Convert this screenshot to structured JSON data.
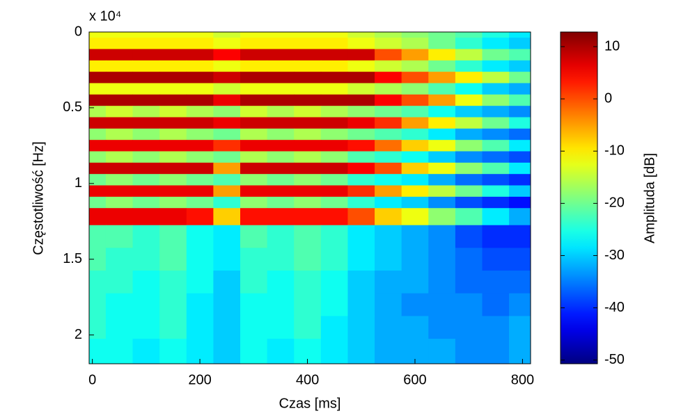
{
  "chart_data": {
    "type": "heatmap",
    "colormap": "jet",
    "xlabel": "Czas [ms]",
    "ylabel": "Częstotliwość [Hz]",
    "y_exponent_label": "x 10⁴",
    "colorbar_label": "Amplituda [dB]",
    "x": [
      0,
      50,
      100,
      150,
      200,
      250,
      300,
      350,
      400,
      450,
      500,
      550,
      600,
      650,
      700,
      750,
      800
    ],
    "y": [
      0,
      750,
      1500,
      2250,
      3000,
      3750,
      4500,
      5250,
      6000,
      6750,
      7500,
      8250,
      9000,
      9750,
      10500,
      11250,
      12000,
      13500,
      15000,
      16500,
      18000,
      19500,
      21000
    ],
    "xlim": [
      -6,
      815
    ],
    "ylim": [
      0,
      21900
    ],
    "xticks": [
      0,
      200,
      400,
      600,
      800
    ],
    "yticks": [
      {
        "value": 0,
        "label": "0"
      },
      {
        "value": 5000,
        "label": "0.5"
      },
      {
        "value": 10000,
        "label": "1"
      },
      {
        "value": 15000,
        "label": "1.5"
      },
      {
        "value": 20000,
        "label": "2"
      }
    ],
    "clim": [
      -50.7,
      12.8
    ],
    "cticks": [
      10,
      0,
      -10,
      -20,
      -30,
      -40,
      -50
    ],
    "values": [
      [
        -12,
        -12,
        -12,
        -12,
        -12,
        -14,
        -12,
        -12,
        -12,
        -12,
        -14,
        -16,
        -18,
        -20,
        -22,
        -25,
        -28
      ],
      [
        -10,
        -10,
        -10,
        -10,
        -10,
        -12,
        -10,
        -10,
        -10,
        -10,
        -12,
        -14,
        -16,
        -20,
        -24,
        -28,
        -30
      ],
      [
        8,
        8,
        8,
        8,
        8,
        5,
        8,
        8,
        8,
        8,
        8,
        0,
        -5,
        -10,
        -15,
        -20,
        -22
      ],
      [
        -10,
        -10,
        -10,
        -10,
        -10,
        -12,
        -10,
        -10,
        -10,
        -10,
        -12,
        -14,
        -16,
        -20,
        -24,
        -28,
        -30
      ],
      [
        10,
        10,
        10,
        10,
        10,
        8,
        10,
        10,
        10,
        10,
        10,
        5,
        0,
        -5,
        -10,
        -15,
        -20
      ],
      [
        -12,
        -12,
        -12,
        -12,
        -12,
        -14,
        -12,
        -12,
        -12,
        -12,
        -14,
        -16,
        -18,
        -22,
        -26,
        -30,
        -32
      ],
      [
        10,
        10,
        10,
        10,
        10,
        6,
        10,
        10,
        10,
        10,
        10,
        5,
        0,
        -5,
        -12,
        -18,
        -22
      ],
      [
        -16,
        -14,
        -16,
        -14,
        -16,
        -18,
        -14,
        -16,
        -14,
        -16,
        -18,
        -20,
        -22,
        -26,
        -30,
        -32,
        -34
      ],
      [
        8,
        8,
        8,
        8,
        8,
        6,
        8,
        8,
        8,
        8,
        6,
        2,
        -5,
        -10,
        -15,
        -20,
        -25
      ],
      [
        -18,
        -16,
        -18,
        -16,
        -18,
        -20,
        -16,
        -18,
        -16,
        -18,
        -20,
        -22,
        -24,
        -28,
        -32,
        -34,
        -36
      ],
      [
        6,
        6,
        6,
        6,
        6,
        2,
        6,
        6,
        6,
        6,
        4,
        -2,
        -8,
        -12,
        -18,
        -22,
        -28
      ],
      [
        -18,
        -16,
        -18,
        -16,
        -18,
        -20,
        -16,
        -18,
        -16,
        -18,
        -22,
        -24,
        -26,
        -30,
        -34,
        -36,
        -38
      ],
      [
        8,
        8,
        8,
        8,
        8,
        -5,
        8,
        8,
        8,
        8,
        5,
        0,
        -8,
        -12,
        -18,
        -22,
        -28
      ],
      [
        -20,
        -18,
        -20,
        -18,
        -20,
        -22,
        -18,
        -20,
        -18,
        -20,
        -24,
        -26,
        -28,
        -32,
        -36,
        -38,
        -40
      ],
      [
        6,
        6,
        6,
        6,
        6,
        -5,
        6,
        6,
        6,
        6,
        2,
        -5,
        -10,
        -15,
        -20,
        -25,
        -30
      ],
      [
        -20,
        -18,
        -20,
        -18,
        -20,
        -24,
        -18,
        -20,
        -18,
        -20,
        -24,
        -28,
        -30,
        -34,
        -38,
        -40,
        -42
      ],
      [
        6,
        6,
        6,
        6,
        4,
        -8,
        4,
        4,
        4,
        4,
        0,
        -8,
        -12,
        -18,
        -22,
        -28,
        -32
      ],
      [
        -22,
        -22,
        -24,
        -22,
        -26,
        -28,
        -22,
        -24,
        -22,
        -24,
        -28,
        -30,
        -32,
        -34,
        -38,
        -40,
        -40
      ],
      [
        -22,
        -24,
        -24,
        -22,
        -26,
        -28,
        -24,
        -24,
        -22,
        -24,
        -28,
        -30,
        -32,
        -34,
        -36,
        -38,
        -38
      ],
      [
        -24,
        -24,
        -26,
        -24,
        -26,
        -30,
        -24,
        -26,
        -24,
        -26,
        -30,
        -32,
        -32,
        -34,
        -36,
        -36,
        -36
      ],
      [
        -24,
        -26,
        -26,
        -24,
        -28,
        -30,
        -26,
        -26,
        -24,
        -26,
        -30,
        -32,
        -34,
        -34,
        -34,
        -36,
        -34
      ],
      [
        -24,
        -26,
        -26,
        -24,
        -28,
        -30,
        -26,
        -26,
        -24,
        -28,
        -30,
        -32,
        -32,
        -34,
        -34,
        -34,
        -32
      ],
      [
        -26,
        -26,
        -28,
        -26,
        -28,
        -30,
        -26,
        -28,
        -26,
        -28,
        -30,
        -32,
        -32,
        -32,
        -34,
        -34,
        -32
      ]
    ]
  }
}
